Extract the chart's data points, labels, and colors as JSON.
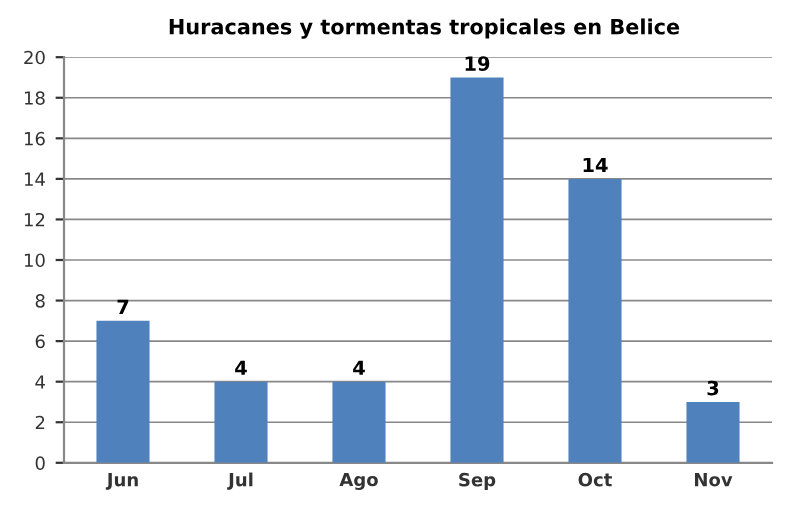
{
  "chart_data": {
    "type": "bar",
    "title": "Huracanes y tormentas tropicales en Belice",
    "categories": [
      "Jun",
      "Jul",
      "Ago",
      "Sep",
      "Oct",
      "Nov"
    ],
    "values": [
      7,
      4,
      4,
      19,
      14,
      3
    ],
    "color": "#4f81bd",
    "ylim": [
      0,
      20
    ],
    "yticks": [
      0,
      2,
      4,
      6,
      8,
      10,
      12,
      14,
      16,
      18,
      20
    ],
    "grid": "y",
    "data_labels": true
  }
}
